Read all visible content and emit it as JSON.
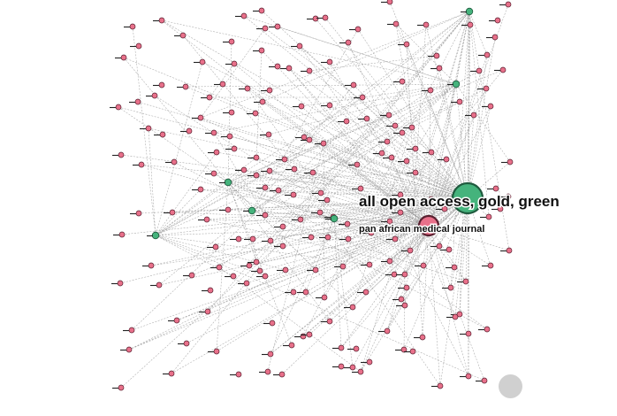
{
  "hubs": {
    "main": {
      "label": "all open access, gold, green",
      "color": "#45b37c"
    },
    "journal": {
      "label": "pan african medical journal",
      "color": "#e8708a"
    }
  },
  "colors": {
    "pink_node": "#e8708a",
    "green_node": "#45b37c",
    "edge": "#9a9a9a",
    "control": "#d0d0d0"
  },
  "controls": {
    "corner_button_icon": "circle-button-icon"
  }
}
